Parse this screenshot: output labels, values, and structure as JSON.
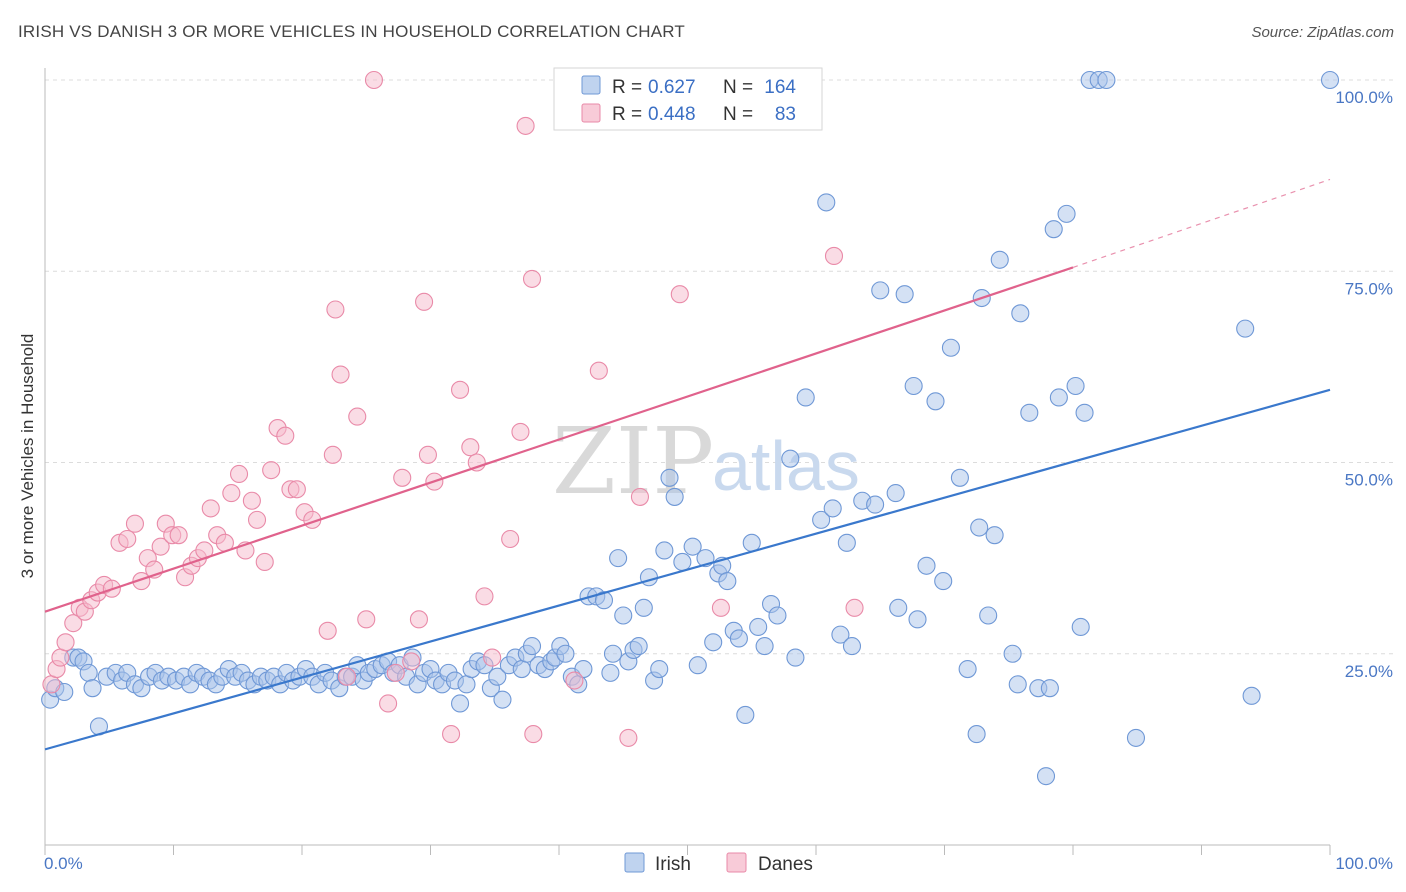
{
  "title": "IRISH VS DANISH 3 OR MORE VEHICLES IN HOUSEHOLD CORRELATION CHART",
  "source": "Source: ZipAtlas.com",
  "watermark": {
    "zip": "ZIP",
    "atlas": "atlas"
  },
  "legend": {
    "r_label": "R =",
    "n_label": "N =",
    "rows": [
      {
        "r": "0.627",
        "n": "164",
        "color": "#a9c4ea",
        "stroke": "#6f98d6"
      },
      {
        "r": "0.448",
        "n": "83",
        "color": "#f6b9cb",
        "stroke": "#e98aa8"
      }
    ]
  },
  "chart_data": {
    "type": "scatter",
    "xlabel": "",
    "ylabel": "3 or more Vehicles in Household",
    "xlim": [
      0,
      100
    ],
    "ylim": [
      0,
      100
    ],
    "x_ticks": [
      "0.0%",
      "100.0%"
    ],
    "y_ticks": [
      {
        "value": 25,
        "label": "25.0%"
      },
      {
        "value": 50,
        "label": "50.0%"
      },
      {
        "value": 75,
        "label": "75.0%"
      },
      {
        "value": 100,
        "label": "100.0%"
      }
    ],
    "grid": "horizontal-dashed",
    "legend_position": "top-center",
    "series": [
      {
        "name": "Irish",
        "color": "#a9c4ea",
        "stroke": "#6f98d6",
        "line_color": "#3a78cc",
        "trend": {
          "x": [
            0,
            100
          ],
          "y": [
            12.5,
            59.5
          ]
        },
        "points": [
          [
            0.4,
            19.0
          ],
          [
            0.8,
            20.5
          ],
          [
            1.5,
            20.0
          ],
          [
            2.2,
            24.5
          ],
          [
            2.6,
            24.5
          ],
          [
            3.0,
            24.0
          ],
          [
            3.4,
            22.5
          ],
          [
            3.7,
            20.5
          ],
          [
            4.2,
            15.5
          ],
          [
            4.8,
            22.0
          ],
          [
            5.5,
            22.5
          ],
          [
            6.0,
            21.5
          ],
          [
            6.4,
            22.5
          ],
          [
            7.0,
            21.0
          ],
          [
            7.5,
            20.5
          ],
          [
            8.1,
            22.0
          ],
          [
            8.6,
            22.5
          ],
          [
            9.1,
            21.5
          ],
          [
            9.6,
            22.0
          ],
          [
            10.2,
            21.5
          ],
          [
            10.8,
            22.0
          ],
          [
            11.3,
            21.0
          ],
          [
            11.8,
            22.5
          ],
          [
            12.3,
            22.0
          ],
          [
            12.8,
            21.5
          ],
          [
            13.3,
            21.0
          ],
          [
            13.8,
            22.0
          ],
          [
            14.3,
            23.0
          ],
          [
            14.8,
            22.0
          ],
          [
            15.3,
            22.5
          ],
          [
            15.8,
            21.5
          ],
          [
            16.3,
            21.0
          ],
          [
            16.8,
            22.0
          ],
          [
            17.3,
            21.5
          ],
          [
            17.8,
            22.0
          ],
          [
            18.3,
            21.0
          ],
          [
            18.8,
            22.5
          ],
          [
            19.3,
            21.5
          ],
          [
            19.8,
            22.0
          ],
          [
            20.3,
            23.0
          ],
          [
            20.8,
            22.0
          ],
          [
            21.3,
            21.0
          ],
          [
            21.8,
            22.5
          ],
          [
            22.3,
            21.5
          ],
          [
            22.9,
            20.5
          ],
          [
            23.4,
            22.0
          ],
          [
            23.9,
            22.0
          ],
          [
            24.3,
            23.5
          ],
          [
            24.8,
            21.5
          ],
          [
            25.2,
            22.5
          ],
          [
            25.7,
            23.0
          ],
          [
            26.2,
            23.5
          ],
          [
            26.7,
            24.0
          ],
          [
            27.1,
            22.5
          ],
          [
            27.6,
            23.5
          ],
          [
            28.1,
            22.0
          ],
          [
            28.6,
            24.5
          ],
          [
            29.0,
            21.0
          ],
          [
            29.5,
            22.5
          ],
          [
            30.0,
            23.0
          ],
          [
            30.4,
            21.5
          ],
          [
            30.9,
            21.0
          ],
          [
            31.4,
            22.5
          ],
          [
            31.9,
            21.5
          ],
          [
            32.3,
            18.5
          ],
          [
            32.8,
            21.0
          ],
          [
            33.2,
            23.0
          ],
          [
            33.7,
            24.0
          ],
          [
            34.2,
            23.5
          ],
          [
            34.7,
            20.5
          ],
          [
            35.2,
            22.0
          ],
          [
            35.6,
            19.0
          ],
          [
            36.1,
            23.5
          ],
          [
            36.6,
            24.5
          ],
          [
            37.1,
            23.0
          ],
          [
            37.5,
            25.0
          ],
          [
            37.9,
            26.0
          ],
          [
            38.4,
            23.5
          ],
          [
            38.9,
            23.0
          ],
          [
            39.4,
            24.0
          ],
          [
            39.7,
            24.5
          ],
          [
            40.1,
            26.0
          ],
          [
            40.5,
            25.0
          ],
          [
            41.0,
            22.0
          ],
          [
            41.5,
            21.0
          ],
          [
            41.9,
            23.0
          ],
          [
            42.3,
            32.5
          ],
          [
            42.9,
            32.5
          ],
          [
            43.5,
            32.0
          ],
          [
            44.0,
            22.5
          ],
          [
            44.2,
            25.0
          ],
          [
            44.6,
            37.5
          ],
          [
            45.0,
            30.0
          ],
          [
            45.4,
            24.0
          ],
          [
            45.8,
            25.5
          ],
          [
            46.2,
            26.0
          ],
          [
            46.6,
            31.0
          ],
          [
            47.0,
            35.0
          ],
          [
            47.4,
            21.5
          ],
          [
            47.8,
            23.0
          ],
          [
            48.2,
            38.5
          ],
          [
            48.6,
            48.0
          ],
          [
            49.0,
            45.5
          ],
          [
            49.6,
            37.0
          ],
          [
            50.4,
            39.0
          ],
          [
            50.8,
            23.5
          ],
          [
            51.4,
            37.5
          ],
          [
            52.0,
            26.5
          ],
          [
            52.4,
            35.5
          ],
          [
            52.7,
            36.5
          ],
          [
            53.1,
            34.5
          ],
          [
            53.6,
            28.0
          ],
          [
            54.0,
            27.0
          ],
          [
            54.5,
            17.0
          ],
          [
            55.0,
            39.5
          ],
          [
            55.5,
            28.5
          ],
          [
            56.0,
            26.0
          ],
          [
            56.5,
            31.5
          ],
          [
            57.0,
            30.0
          ],
          [
            58.0,
            50.5
          ],
          [
            58.4,
            24.5
          ],
          [
            59.2,
            58.5
          ],
          [
            60.4,
            42.5
          ],
          [
            60.8,
            84.0
          ],
          [
            61.3,
            44.0
          ],
          [
            61.9,
            27.5
          ],
          [
            62.4,
            39.5
          ],
          [
            62.8,
            26.0
          ],
          [
            63.6,
            45.0
          ],
          [
            64.6,
            44.5
          ],
          [
            65.0,
            72.5
          ],
          [
            66.2,
            46.0
          ],
          [
            66.4,
            31.0
          ],
          [
            66.9,
            72.0
          ],
          [
            67.6,
            60.0
          ],
          [
            67.9,
            29.5
          ],
          [
            68.6,
            36.5
          ],
          [
            69.3,
            58.0
          ],
          [
            69.9,
            34.5
          ],
          [
            70.5,
            65.0
          ],
          [
            71.2,
            48.0
          ],
          [
            71.8,
            23.0
          ],
          [
            72.5,
            14.5
          ],
          [
            72.7,
            41.5
          ],
          [
            72.9,
            71.5
          ],
          [
            73.4,
            30.0
          ],
          [
            73.9,
            40.5
          ],
          [
            74.3,
            76.5
          ],
          [
            75.3,
            25.0
          ],
          [
            75.7,
            21.0
          ],
          [
            75.9,
            69.5
          ],
          [
            76.6,
            56.5
          ],
          [
            77.3,
            20.5
          ],
          [
            77.9,
            9.0
          ],
          [
            78.2,
            20.5
          ],
          [
            78.5,
            80.5
          ],
          [
            78.9,
            58.5
          ],
          [
            79.5,
            82.5
          ],
          [
            80.2,
            60.0
          ],
          [
            80.6,
            28.5
          ],
          [
            80.9,
            56.5
          ],
          [
            81.3,
            100.0
          ],
          [
            82.0,
            100.0
          ],
          [
            82.6,
            100.0
          ],
          [
            84.9,
            14.0
          ],
          [
            93.4,
            67.5
          ],
          [
            93.9,
            19.5
          ],
          [
            100.0,
            100.0
          ]
        ]
      },
      {
        "name": "Danes",
        "color": "#f6b9cb",
        "stroke": "#e98aa8",
        "line_color": "#e0628c",
        "trend": {
          "x": [
            0,
            80
          ],
          "y": [
            30.5,
            75.5
          ]
        },
        "trend_extension": {
          "x": [
            80,
            100
          ],
          "y": [
            75.5,
            87.0
          ]
        },
        "points": [
          [
            0.5,
            21.0
          ],
          [
            0.9,
            23.0
          ],
          [
            1.2,
            24.5
          ],
          [
            1.6,
            26.5
          ],
          [
            2.2,
            29.0
          ],
          [
            2.7,
            31.0
          ],
          [
            3.1,
            30.5
          ],
          [
            3.6,
            32.0
          ],
          [
            4.1,
            33.0
          ],
          [
            4.6,
            34.0
          ],
          [
            5.2,
            33.5
          ],
          [
            5.8,
            39.5
          ],
          [
            6.4,
            40.0
          ],
          [
            7.0,
            42.0
          ],
          [
            7.5,
            34.5
          ],
          [
            8.0,
            37.5
          ],
          [
            8.5,
            36.0
          ],
          [
            9.0,
            39.0
          ],
          [
            9.4,
            42.0
          ],
          [
            9.9,
            40.5
          ],
          [
            10.4,
            40.5
          ],
          [
            10.9,
            35.0
          ],
          [
            11.4,
            36.5
          ],
          [
            11.9,
            37.5
          ],
          [
            12.4,
            38.5
          ],
          [
            12.9,
            44.0
          ],
          [
            13.4,
            40.5
          ],
          [
            14.0,
            39.5
          ],
          [
            14.5,
            46.0
          ],
          [
            15.1,
            48.5
          ],
          [
            15.6,
            38.5
          ],
          [
            16.1,
            45.0
          ],
          [
            16.5,
            42.5
          ],
          [
            17.1,
            37.0
          ],
          [
            17.6,
            49.0
          ],
          [
            18.1,
            54.5
          ],
          [
            18.7,
            53.5
          ],
          [
            19.1,
            46.5
          ],
          [
            19.6,
            46.5
          ],
          [
            20.2,
            43.5
          ],
          [
            20.8,
            42.5
          ],
          [
            22.0,
            28.0
          ],
          [
            22.4,
            51.0
          ],
          [
            22.6,
            70.0
          ],
          [
            23.0,
            61.5
          ],
          [
            23.5,
            22.0
          ],
          [
            24.3,
            56.0
          ],
          [
            25.0,
            29.5
          ],
          [
            25.6,
            100.0
          ],
          [
            26.7,
            18.5
          ],
          [
            27.3,
            22.5
          ],
          [
            27.8,
            48.0
          ],
          [
            28.5,
            24.0
          ],
          [
            29.1,
            29.5
          ],
          [
            29.5,
            71.0
          ],
          [
            29.8,
            51.0
          ],
          [
            30.3,
            47.5
          ],
          [
            31.6,
            14.5
          ],
          [
            32.3,
            59.5
          ],
          [
            33.1,
            52.0
          ],
          [
            33.6,
            50.0
          ],
          [
            34.2,
            32.5
          ],
          [
            34.8,
            24.5
          ],
          [
            36.2,
            40.0
          ],
          [
            37.0,
            54.0
          ],
          [
            37.4,
            94.0
          ],
          [
            37.9,
            74.0
          ],
          [
            38.0,
            14.5
          ],
          [
            41.2,
            21.5
          ],
          [
            43.1,
            62.0
          ],
          [
            45.4,
            14.0
          ],
          [
            46.3,
            45.5
          ],
          [
            49.4,
            72.0
          ],
          [
            52.6,
            31.0
          ],
          [
            53.1,
            98.5
          ],
          [
            61.4,
            77.0
          ],
          [
            63.0,
            31.0
          ]
        ]
      }
    ]
  }
}
